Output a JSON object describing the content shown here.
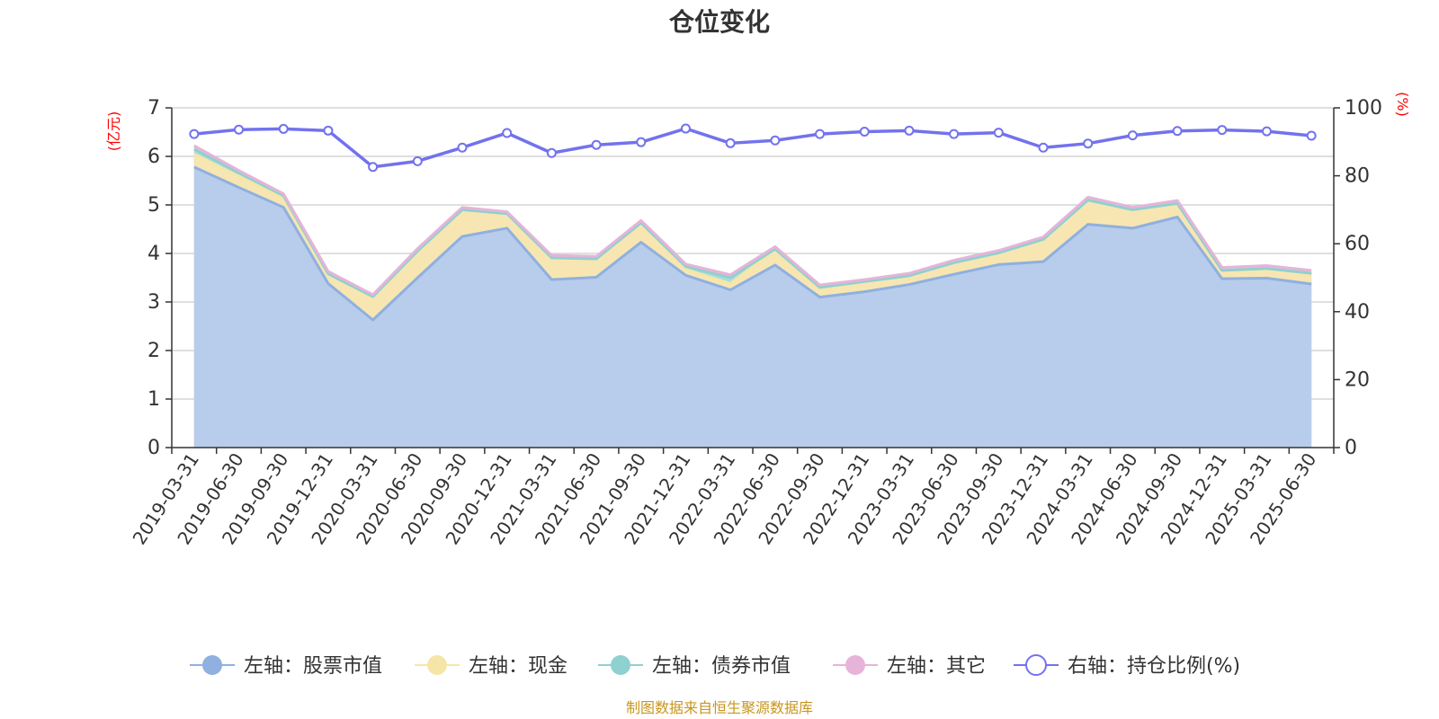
{
  "chart_data": {
    "type": "area",
    "title": "仓位变化",
    "left_axis_unit": "(亿元)",
    "right_axis_unit": "(%)",
    "left_ylim": [
      0,
      7
    ],
    "left_ticks": [
      "0",
      "1",
      "2",
      "3",
      "4",
      "5",
      "6",
      "7"
    ],
    "right_ylim": [
      0,
      100
    ],
    "right_ticks": [
      "0",
      "20",
      "40",
      "60",
      "80",
      "100"
    ],
    "grid": true,
    "legend_position": "bottom",
    "source": "制图数据来自恒生聚源数据库",
    "x_labels": [
      "2019-03-31",
      "2019-06-30",
      "2019-09-30",
      "2019-12-31",
      "2020-03-31",
      "2020-06-30",
      "2020-09-30",
      "2020-12-31",
      "2021-03-31",
      "2021-06-30",
      "2021-09-30",
      "2021-12-31",
      "2022-03-31",
      "2022-06-30",
      "2022-09-30",
      "2022-12-31",
      "2023-03-31",
      "2023-06-30",
      "2023-09-30",
      "2023-12-31",
      "2024-03-31",
      "2024-06-30",
      "2024-09-30",
      "2024-12-31",
      "2025-03-31",
      "2025-06-30"
    ],
    "series": [
      {
        "name": "左轴：股票市值",
        "axis": "left",
        "kind": "area",
        "color": "#8fb0e0",
        "fill": "#b8cdeb",
        "values": [
          5.78,
          5.36,
          4.95,
          3.38,
          2.63,
          3.5,
          4.35,
          4.52,
          3.46,
          3.51,
          4.23,
          3.55,
          3.25,
          3.76,
          3.1,
          3.21,
          3.36,
          3.57,
          3.77,
          3.83,
          4.6,
          4.52,
          4.75,
          3.48,
          3.49,
          3.37
        ]
      },
      {
        "name": "左轴：现金",
        "axis": "left",
        "kind": "area",
        "color": "#f5e6a8",
        "fill": "#f7e6b1",
        "values": [
          0.27,
          0.23,
          0.19,
          0.2,
          0.48,
          0.55,
          0.55,
          0.3,
          0.45,
          0.38,
          0.4,
          0.12,
          0.13,
          0.33,
          0.15,
          0.21,
          0.18,
          0.24,
          0.24,
          0.46,
          0.5,
          0.38,
          0.28,
          0.17,
          0.2,
          0.22
        ]
      },
      {
        "name": "左轴：债券市值",
        "axis": "left",
        "kind": "area",
        "color": "#8fd0d0",
        "fill": "#a8dcd9",
        "values": [
          0.1,
          0.07,
          0.05,
          0.0,
          0.0,
          0.0,
          0.0,
          0.0,
          0.0,
          0.0,
          0.0,
          0.06,
          0.12,
          0.0,
          0.05,
          0.0,
          0.0,
          0.0,
          0.0,
          0.0,
          0.0,
          0.0,
          0.0,
          0.0,
          0.0,
          0.0
        ]
      },
      {
        "name": "左轴：其它",
        "axis": "left",
        "kind": "area",
        "color": "#e6b4d8",
        "fill": "#ebc0de",
        "values": [
          0.07,
          0.05,
          0.04,
          0.05,
          0.04,
          0.05,
          0.05,
          0.04,
          0.05,
          0.05,
          0.05,
          0.05,
          0.06,
          0.05,
          0.05,
          0.04,
          0.05,
          0.05,
          0.05,
          0.05,
          0.06,
          0.05,
          0.06,
          0.06,
          0.06,
          0.06
        ]
      },
      {
        "name": "右轴：持仓比例(%)",
        "axis": "right",
        "kind": "line",
        "color": "#7272ee",
        "values": [
          92.3,
          93.6,
          93.8,
          93.3,
          82.6,
          84.3,
          88.3,
          92.6,
          86.7,
          89.1,
          89.9,
          93.9,
          89.6,
          90.4,
          92.3,
          93.0,
          93.3,
          92.3,
          92.7,
          88.3,
          89.5,
          91.9,
          93.2,
          93.5,
          93.1,
          91.8
        ]
      }
    ]
  }
}
